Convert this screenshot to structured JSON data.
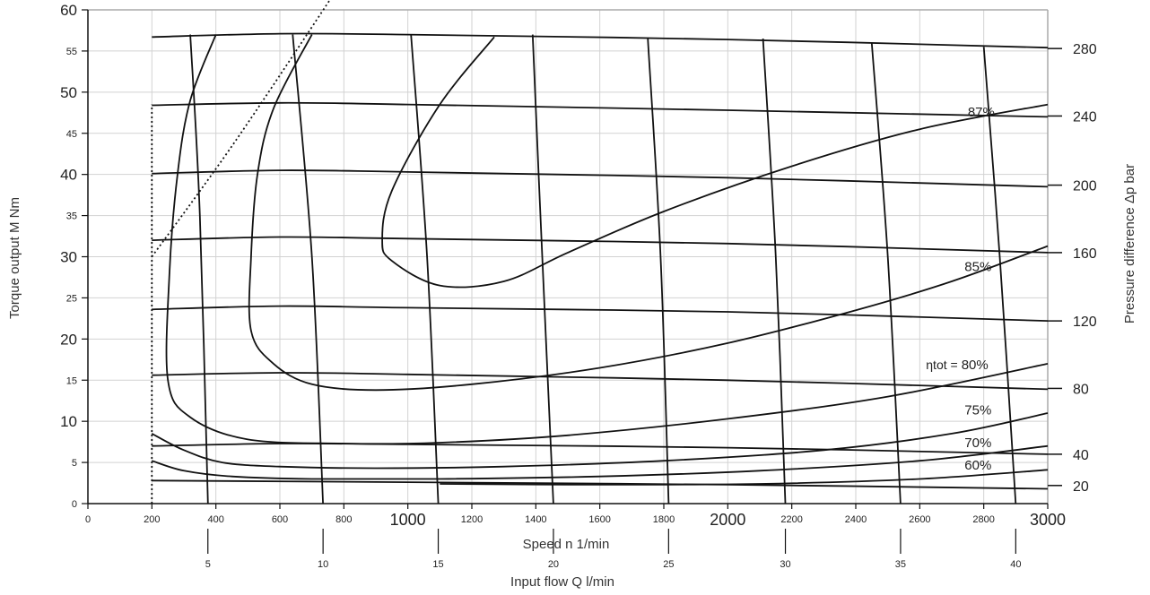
{
  "chart_data": {
    "type": "line",
    "y_left": {
      "label": "Torque output M Nm",
      "lim": [
        0,
        60
      ],
      "ticks": [
        {
          "value": 0,
          "label": "0",
          "major": false
        },
        {
          "value": 5,
          "label": "5",
          "major": false
        },
        {
          "value": 10,
          "label": "10",
          "major": true
        },
        {
          "value": 15,
          "label": "15",
          "major": false
        },
        {
          "value": 20,
          "label": "20",
          "major": true
        },
        {
          "value": 25,
          "label": "25",
          "major": false
        },
        {
          "value": 30,
          "label": "30",
          "major": true
        },
        {
          "value": 35,
          "label": "35",
          "major": false
        },
        {
          "value": 40,
          "label": "40",
          "major": true
        },
        {
          "value": 45,
          "label": "45",
          "major": false
        },
        {
          "value": 50,
          "label": "50",
          "major": true
        },
        {
          "value": 55,
          "label": "55",
          "major": false
        },
        {
          "value": 60,
          "label": "60",
          "major": true
        }
      ]
    },
    "y_right": {
      "label": "Pressure difference Δp bar",
      "ticks": [
        {
          "torque": 2.2,
          "label": "20"
        },
        {
          "torque": 6.0,
          "label": "40"
        },
        {
          "torque": 14.0,
          "label": "80"
        },
        {
          "torque": 22.2,
          "label": "120"
        },
        {
          "torque": 30.5,
          "label": "160"
        },
        {
          "torque": 38.7,
          "label": "200"
        },
        {
          "torque": 47.1,
          "label": "240"
        },
        {
          "torque": 55.3,
          "label": "280"
        }
      ]
    },
    "x_speed": {
      "label": "Speed n 1/min",
      "lim": [
        0,
        3000
      ],
      "ticks": [
        {
          "value": 0,
          "label": "0",
          "major": false
        },
        {
          "value": 200,
          "label": "200",
          "major": false
        },
        {
          "value": 400,
          "label": "400",
          "major": false
        },
        {
          "value": 600,
          "label": "600",
          "major": false
        },
        {
          "value": 800,
          "label": "800",
          "major": false
        },
        {
          "value": 1000,
          "label": "1000",
          "major": true
        },
        {
          "value": 1200,
          "label": "1200",
          "major": false
        },
        {
          "value": 1400,
          "label": "1400",
          "major": false
        },
        {
          "value": 1600,
          "label": "1600",
          "major": false
        },
        {
          "value": 1800,
          "label": "1800",
          "major": false
        },
        {
          "value": 2000,
          "label": "2000",
          "major": true
        },
        {
          "value": 2200,
          "label": "2200",
          "major": false
        },
        {
          "value": 2400,
          "label": "2400",
          "major": false
        },
        {
          "value": 2600,
          "label": "2600",
          "major": false
        },
        {
          "value": 2800,
          "label": "2800",
          "major": false
        },
        {
          "value": 3000,
          "label": "3000",
          "major": true
        }
      ]
    },
    "x_flow": {
      "label": "Input flow Q l/min",
      "ticks": [
        {
          "speed": 375,
          "label": "5"
        },
        {
          "speed": 735,
          "label": "10"
        },
        {
          "speed": 1095,
          "label": "15"
        },
        {
          "speed": 1455,
          "label": "20"
        },
        {
          "speed": 1815,
          "label": "25"
        },
        {
          "speed": 2180,
          "label": "30"
        },
        {
          "speed": 2540,
          "label": "35"
        },
        {
          "speed": 2900,
          "label": "40"
        }
      ]
    },
    "grid": true,
    "pressure_lines": [
      {
        "label": "20",
        "points": [
          [
            200,
            2.8
          ],
          [
            1000,
            2.6
          ],
          [
            2000,
            2.3
          ],
          [
            3000,
            1.8
          ]
        ]
      },
      {
        "label": "40",
        "points": [
          [
            200,
            7.0
          ],
          [
            600,
            7.3
          ],
          [
            1000,
            7.2
          ],
          [
            2000,
            6.8
          ],
          [
            3000,
            6.0
          ]
        ]
      },
      {
        "label": "80",
        "points": [
          [
            200,
            15.6
          ],
          [
            600,
            15.9
          ],
          [
            1000,
            15.7
          ],
          [
            2000,
            15.0
          ],
          [
            3000,
            13.9
          ]
        ]
      },
      {
        "label": "120",
        "points": [
          [
            200,
            23.6
          ],
          [
            600,
            24.0
          ],
          [
            1000,
            23.8
          ],
          [
            2000,
            23.3
          ],
          [
            3000,
            22.2
          ]
        ]
      },
      {
        "label": "160",
        "points": [
          [
            200,
            32.0
          ],
          [
            600,
            32.4
          ],
          [
            1000,
            32.2
          ],
          [
            2000,
            31.6
          ],
          [
            3000,
            30.5
          ]
        ]
      },
      {
        "label": "200",
        "points": [
          [
            200,
            40.1
          ],
          [
            600,
            40.5
          ],
          [
            1000,
            40.3
          ],
          [
            2000,
            39.6
          ],
          [
            3000,
            38.5
          ]
        ]
      },
      {
        "label": "240",
        "points": [
          [
            200,
            48.4
          ],
          [
            600,
            48.7
          ],
          [
            1000,
            48.5
          ],
          [
            2000,
            47.8
          ],
          [
            3000,
            47.0
          ]
        ]
      },
      {
        "label": "280",
        "points": [
          [
            200,
            56.7
          ],
          [
            600,
            57.1
          ],
          [
            1000,
            57.0
          ],
          [
            2000,
            56.4
          ],
          [
            3000,
            55.4
          ]
        ]
      }
    ],
    "flow_lines": [
      {
        "label": "5",
        "points": [
          [
            320,
            57
          ],
          [
            350,
            35
          ],
          [
            375,
            0
          ]
        ]
      },
      {
        "label": "10",
        "points": [
          [
            640,
            57
          ],
          [
            700,
            30
          ],
          [
            735,
            0
          ]
        ]
      },
      {
        "label": "15",
        "points": [
          [
            1010,
            57
          ],
          [
            1060,
            30
          ],
          [
            1095,
            0
          ]
        ]
      },
      {
        "label": "20",
        "points": [
          [
            1390,
            57
          ],
          [
            1420,
            30
          ],
          [
            1455,
            0
          ]
        ]
      },
      {
        "label": "25",
        "points": [
          [
            1750,
            56.5
          ],
          [
            1790,
            30
          ],
          [
            1815,
            0
          ]
        ]
      },
      {
        "label": "30",
        "points": [
          [
            2110,
            56.5
          ],
          [
            2150,
            30
          ],
          [
            2180,
            0
          ]
        ]
      },
      {
        "label": "35",
        "points": [
          [
            2450,
            56
          ],
          [
            2500,
            30
          ],
          [
            2540,
            0
          ]
        ]
      },
      {
        "label": "40",
        "points": [
          [
            2800,
            55.5
          ],
          [
            2850,
            30
          ],
          [
            2900,
            0
          ]
        ]
      }
    ],
    "efficiency_curves": [
      {
        "label": "87%",
        "points": [
          [
            1270,
            56.7
          ],
          [
            1100,
            48.5
          ],
          [
            950,
            38.0
          ],
          [
            920,
            32.0
          ],
          [
            950,
            29.5
          ],
          [
            1100,
            26.5
          ],
          [
            1300,
            27.0
          ],
          [
            1500,
            30.5
          ],
          [
            1800,
            35.5
          ],
          [
            2200,
            41.0
          ],
          [
            2600,
            45.5
          ],
          [
            3000,
            48.5
          ]
        ]
      },
      {
        "label": "85%",
        "points": [
          [
            700,
            57.0
          ],
          [
            580,
            48.0
          ],
          [
            530,
            40.0
          ],
          [
            510,
            30.0
          ],
          [
            510,
            21.0
          ],
          [
            580,
            17.0
          ],
          [
            700,
            14.5
          ],
          [
            900,
            13.8
          ],
          [
            1200,
            14.5
          ],
          [
            1600,
            16.5
          ],
          [
            2000,
            19.5
          ],
          [
            2400,
            23.5
          ],
          [
            2700,
            27.0
          ],
          [
            3000,
            31.3
          ]
        ]
      },
      {
        "label": "80%",
        "points": [
          [
            400,
            57.0
          ],
          [
            320,
            49.0
          ],
          [
            280,
            40.0
          ],
          [
            255,
            28.0
          ],
          [
            250,
            15.0
          ],
          [
            320,
            10.5
          ],
          [
            500,
            7.8
          ],
          [
            800,
            7.3
          ],
          [
            1100,
            7.4
          ],
          [
            1500,
            8.3
          ],
          [
            2000,
            10.3
          ],
          [
            2500,
            13.0
          ],
          [
            3000,
            17.0
          ]
        ]
      },
      {
        "label": "75%",
        "points": [
          [
            200,
            8.5
          ],
          [
            300,
            6.5
          ],
          [
            420,
            5.0
          ],
          [
            600,
            4.5
          ],
          [
            900,
            4.3
          ],
          [
            1300,
            4.5
          ],
          [
            1800,
            5.2
          ],
          [
            2300,
            6.5
          ],
          [
            2700,
            8.5
          ],
          [
            3000,
            11.0
          ]
        ]
      },
      {
        "label": "70%",
        "points": [
          [
            200,
            5.2
          ],
          [
            300,
            4.0
          ],
          [
            450,
            3.3
          ],
          [
            700,
            3.0
          ],
          [
            1100,
            3.0
          ],
          [
            1600,
            3.3
          ],
          [
            2100,
            4.0
          ],
          [
            2600,
            5.2
          ],
          [
            3000,
            7.0
          ]
        ]
      },
      {
        "label": "60%",
        "points": [
          [
            1100,
            2.4
          ],
          [
            1600,
            2.3
          ],
          [
            2100,
            2.4
          ],
          [
            2600,
            3.0
          ],
          [
            3000,
            4.1
          ]
        ]
      }
    ],
    "efficiency_labels": [
      {
        "prefix": "ηtot = ",
        "text": "80%",
        "speed": 2730,
        "torque": 16.9
      },
      {
        "prefix": "",
        "text": "75%",
        "speed": 2740,
        "torque": 11.4
      },
      {
        "prefix": "",
        "text": "70%",
        "speed": 2740,
        "torque": 7.4
      },
      {
        "prefix": "",
        "text": "60%",
        "speed": 2740,
        "torque": 4.7
      },
      {
        "prefix": "",
        "text": "85%",
        "speed": 2740,
        "torque": 28.8
      },
      {
        "prefix": "",
        "text": "87%",
        "speed": 2750,
        "torque": 47.6
      }
    ],
    "limit_lines": [
      {
        "name": "min-speed",
        "points": [
          [
            200,
            0
          ],
          [
            200,
            48.5
          ]
        ]
      },
      {
        "name": "start-limit",
        "points": [
          [
            200,
            30.0
          ],
          [
            460,
            44.0
          ],
          [
            770,
            62.0
          ]
        ]
      }
    ]
  }
}
